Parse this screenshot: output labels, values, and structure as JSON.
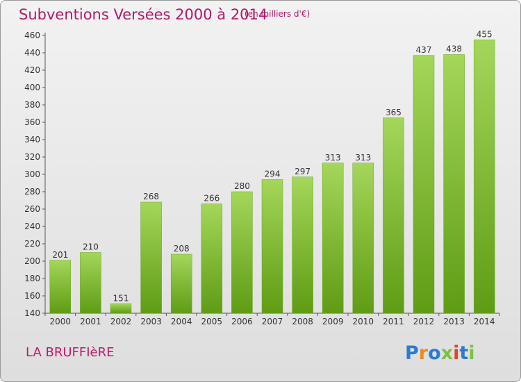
{
  "header": {
    "title": "Subventions Versées 2000 à 2014",
    "unit": "(en milliers d'€)"
  },
  "footer": {
    "commune": "LA BRUFFIèRE",
    "logo_text": "Proxiti"
  },
  "colors": {
    "title": "#b5186a",
    "bar_top": "#a4d65a",
    "bar_bottom": "#5f9c14",
    "logo_p": "#2a7bd3",
    "logo_r": "#f0891c",
    "logo_o": "#2a7bd3",
    "logo_x": "#7cc242",
    "logo_i": "#e0452b",
    "logo_t": "#2a7bd3",
    "logo_i2": "#7cc242"
  },
  "chart_data": {
    "type": "bar",
    "title": "Subventions Versées 2000 à 2014",
    "subtitle": "(en milliers d'€)",
    "categories": [
      "2000",
      "2001",
      "2002",
      "2003",
      "2004",
      "2005",
      "2006",
      "2007",
      "2008",
      "2009",
      "2010",
      "2011",
      "2012",
      "2013",
      "2014"
    ],
    "values": [
      201,
      210,
      151,
      268,
      208,
      266,
      280,
      294,
      297,
      313,
      313,
      365,
      437,
      438,
      455
    ],
    "ylim": [
      140,
      460
    ],
    "ytick_step": 20,
    "grid": false,
    "legend": "none"
  }
}
